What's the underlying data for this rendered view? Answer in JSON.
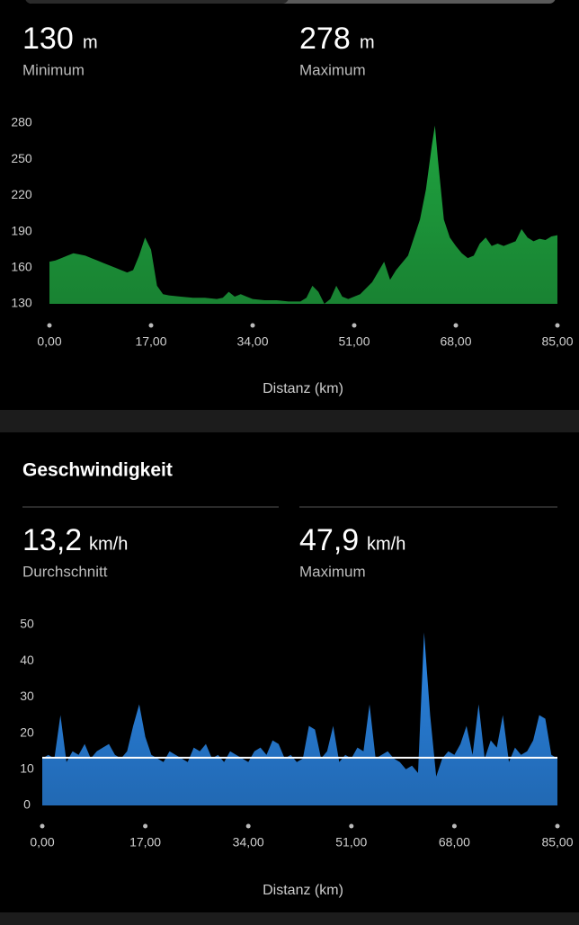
{
  "elevation": {
    "min_value": "130",
    "min_unit": "m",
    "min_label": "Minimum",
    "max_value": "278",
    "max_unit": "m",
    "max_label": "Maximum"
  },
  "speed": {
    "title": "Geschwindigkeit",
    "avg_value": "13,2",
    "avg_unit": "km/h",
    "avg_label": "Durchschnitt",
    "max_value": "47,9",
    "max_unit": "km/h",
    "max_label": "Maximum"
  },
  "chart_data": [
    {
      "type": "area",
      "color": "#1fa33f",
      "x_label": "Distanz (km)",
      "x": [
        0,
        1,
        2,
        3,
        4,
        5,
        6,
        7,
        8,
        9,
        10,
        11,
        12,
        13,
        14,
        15,
        16,
        17,
        18,
        19,
        20,
        22,
        24,
        26,
        28,
        29,
        30,
        31,
        32,
        33,
        34,
        36,
        38,
        40,
        42,
        43,
        44,
        45,
        46,
        47,
        48,
        49,
        50,
        52,
        54,
        56,
        57,
        58,
        60,
        61,
        62,
        63,
        64,
        64.5,
        65,
        66,
        67,
        68,
        69,
        70,
        71,
        72,
        73,
        74,
        75,
        76,
        77,
        78,
        79,
        80,
        81,
        82,
        83,
        84,
        85
      ],
      "values": [
        165,
        166,
        168,
        170,
        172,
        171,
        170,
        168,
        166,
        164,
        162,
        160,
        158,
        156,
        158,
        170,
        185,
        175,
        145,
        138,
        137,
        136,
        135,
        135,
        134,
        135,
        140,
        136,
        138,
        136,
        134,
        133,
        133,
        132,
        132,
        135,
        145,
        140,
        130,
        134,
        145,
        136,
        134,
        138,
        148,
        165,
        150,
        158,
        170,
        185,
        200,
        225,
        262,
        278,
        250,
        200,
        185,
        178,
        172,
        168,
        170,
        180,
        185,
        178,
        180,
        178,
        180,
        182,
        192,
        185,
        182,
        184,
        183,
        186,
        187
      ],
      "xlim": [
        0,
        85
      ],
      "ylim": [
        130,
        280
      ],
      "xticks": [
        {
          "value": 0,
          "label": "0,00"
        },
        {
          "value": 17,
          "label": "17,00"
        },
        {
          "value": 34,
          "label": "34,00"
        },
        {
          "value": 51,
          "label": "51,00"
        },
        {
          "value": 68,
          "label": "68,00"
        },
        {
          "value": 85,
          "label": "85,00"
        }
      ],
      "yticks": [
        130,
        160,
        190,
        220,
        250,
        280
      ]
    },
    {
      "type": "area",
      "color": "#2a83e0",
      "x_label": "Distanz (km)",
      "reference_line": 13.2,
      "reference_color": "#ffffff",
      "x": [
        0,
        1,
        2,
        3,
        4,
        5,
        6,
        7,
        8,
        9,
        10,
        11,
        12,
        13,
        14,
        15,
        16,
        17,
        18,
        19,
        20,
        21,
        22,
        23,
        24,
        25,
        26,
        27,
        28,
        29,
        30,
        31,
        32,
        33,
        34,
        35,
        36,
        37,
        38,
        39,
        40,
        41,
        42,
        43,
        44,
        45,
        46,
        47,
        48,
        49,
        50,
        51,
        52,
        53,
        54,
        55,
        56,
        57,
        58,
        59,
        60,
        61,
        62,
        63,
        64,
        65,
        66,
        67,
        68,
        69,
        70,
        71,
        72,
        73,
        74,
        75,
        76,
        77,
        78,
        79,
        80,
        81,
        82,
        83,
        84,
        85
      ],
      "values": [
        13,
        14,
        13,
        25,
        12,
        15,
        14,
        17,
        13,
        15,
        16,
        17,
        14,
        13,
        15,
        22,
        28,
        19,
        14,
        13,
        12,
        15,
        14,
        13,
        12,
        16,
        15,
        17,
        13,
        14,
        12,
        15,
        14,
        13,
        12,
        15,
        16,
        14,
        18,
        17,
        13,
        14,
        12,
        13,
        22,
        21,
        13,
        15,
        22,
        12,
        14,
        13,
        16,
        15,
        28,
        13,
        14,
        15,
        13,
        12,
        10,
        11,
        9,
        47.9,
        25,
        8,
        13,
        15,
        14,
        17,
        22,
        14,
        28,
        13,
        18,
        16,
        25,
        12,
        16,
        14,
        15,
        18,
        25,
        24,
        14,
        13
      ],
      "xlim": [
        0,
        85
      ],
      "ylim": [
        0,
        50
      ],
      "xticks": [
        {
          "value": 0,
          "label": "0,00"
        },
        {
          "value": 17,
          "label": "17,00"
        },
        {
          "value": 34,
          "label": "34,00"
        },
        {
          "value": 51,
          "label": "51,00"
        },
        {
          "value": 68,
          "label": "68,00"
        },
        {
          "value": 85,
          "label": "85,00"
        }
      ],
      "yticks": [
        0,
        10,
        20,
        30,
        40,
        50
      ]
    }
  ]
}
